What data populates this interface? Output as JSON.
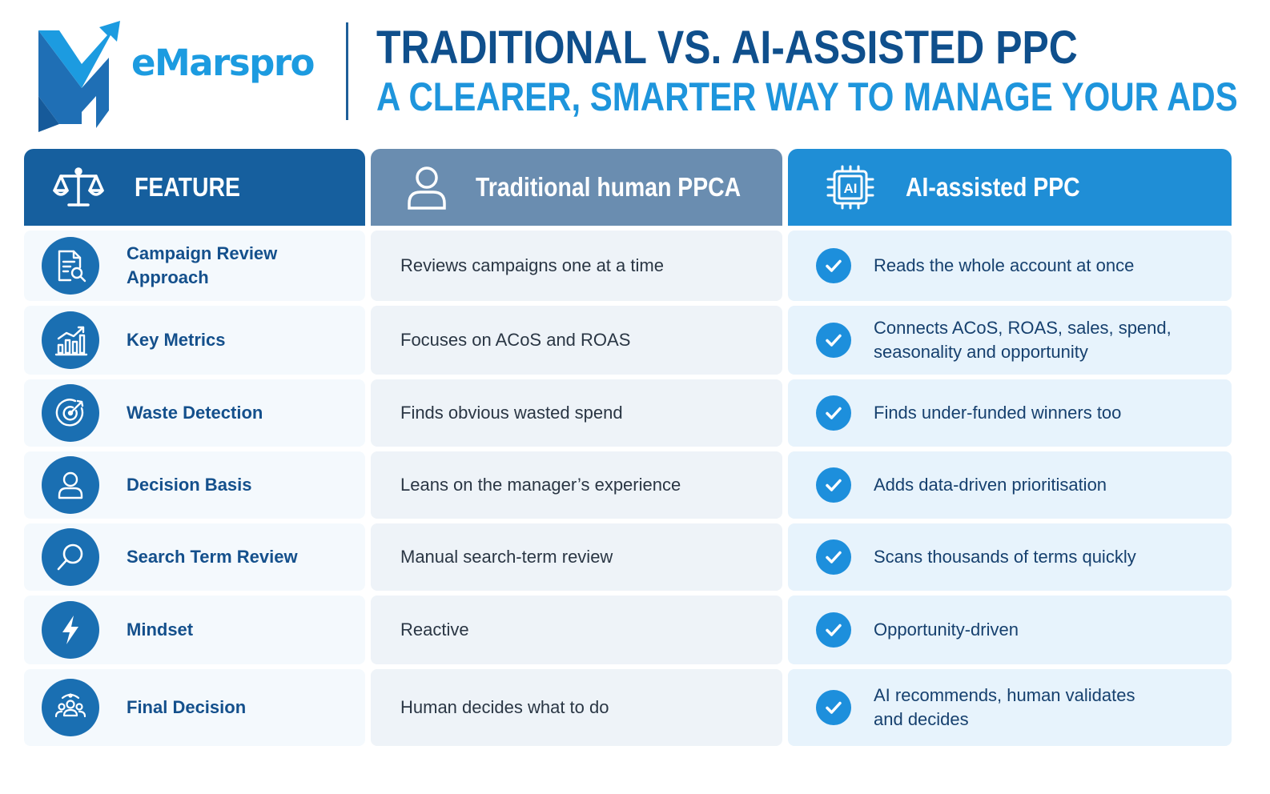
{
  "header": {
    "brand_name": "eMarspro",
    "title": "TRADITIONAL VS. AI-ASSISTED PPC",
    "subtitle": "A CLEARER, SMARTER WAY TO MANAGE YOUR ADS"
  },
  "columns": {
    "feature": {
      "label": "FEATURE",
      "icon": "scales-icon"
    },
    "traditional": {
      "label": "Traditional human PPCA",
      "icon": "person-icon"
    },
    "ai": {
      "label": "AI-assisted PPC",
      "icon": "ai-chip-icon",
      "chip_text": "AI"
    }
  },
  "rows": [
    {
      "feature": "Campaign Review Approach",
      "icon": "document-search-icon",
      "traditional": "Reviews campaigns one at a time",
      "ai": "Reads the whole account at once"
    },
    {
      "feature": "Key Metrics",
      "icon": "bar-chart-icon",
      "traditional": "Focuses on ACoS and ROAS",
      "ai": "Connects ACoS, ROAS, sales, spend, seasonality and opportunity"
    },
    {
      "feature": "Waste Detection",
      "icon": "target-icon",
      "traditional": "Finds obvious wasted spend",
      "ai": "Finds under-funded winners too"
    },
    {
      "feature": "Decision Basis",
      "icon": "user-icon",
      "traditional": "Leans on the manager’s experience",
      "ai": "Adds data-driven prioritisation"
    },
    {
      "feature": "Search Term Review",
      "icon": "magnifier-icon",
      "traditional": "Manual search-term review",
      "ai": "Scans thousands of terms quickly"
    },
    {
      "feature": "Mindset",
      "icon": "lightning-icon",
      "traditional": "Reactive",
      "ai": "Opportunity-driven"
    },
    {
      "feature": "Final Decision",
      "icon": "team-icon",
      "traditional": "Human decides what to do",
      "ai": "AI recommends, human validates and decides"
    }
  ],
  "colors": {
    "navy": "#165f9e",
    "slate": "#6a8db0",
    "sky": "#1f8ed6",
    "title": "#0f4f8c",
    "subtitle": "#1e95dc"
  }
}
